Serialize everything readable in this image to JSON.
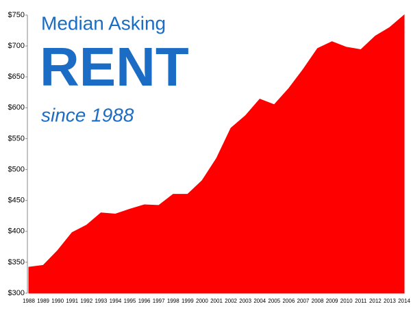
{
  "chart_data": {
    "type": "area",
    "title_lines": [
      "Median Asking",
      "RENT",
      "since 1988"
    ],
    "categories": [
      "1988",
      "1989",
      "1990",
      "1991",
      "1992",
      "1993",
      "1994",
      "1995",
      "1996",
      "1997",
      "1998",
      "1999",
      "2000",
      "2001",
      "2002",
      "2003",
      "2004",
      "2005",
      "2006",
      "2007",
      "2008",
      "2009",
      "2010",
      "2011",
      "2012",
      "2013",
      "2014"
    ],
    "values": [
      342,
      345,
      369,
      398,
      410,
      430,
      428,
      436,
      443,
      442,
      460,
      460,
      482,
      518,
      567,
      587,
      614,
      605,
      631,
      662,
      696,
      707,
      698,
      694,
      716,
      730,
      750
    ],
    "color": "#ff0000",
    "ylim": [
      300,
      750
    ],
    "yticks": [
      {
        "value": 300,
        "label": "$300"
      },
      {
        "value": 350,
        "label": "$350"
      },
      {
        "value": 400,
        "label": "$400"
      },
      {
        "value": 450,
        "label": "$450"
      },
      {
        "value": 500,
        "label": "$500"
      },
      {
        "value": 550,
        "label": "$550"
      },
      {
        "value": 600,
        "label": "$600"
      },
      {
        "value": 650,
        "label": "$650"
      },
      {
        "value": 700,
        "label": "$700"
      },
      {
        "value": 750,
        "label": "$750"
      }
    ],
    "grid": false
  }
}
